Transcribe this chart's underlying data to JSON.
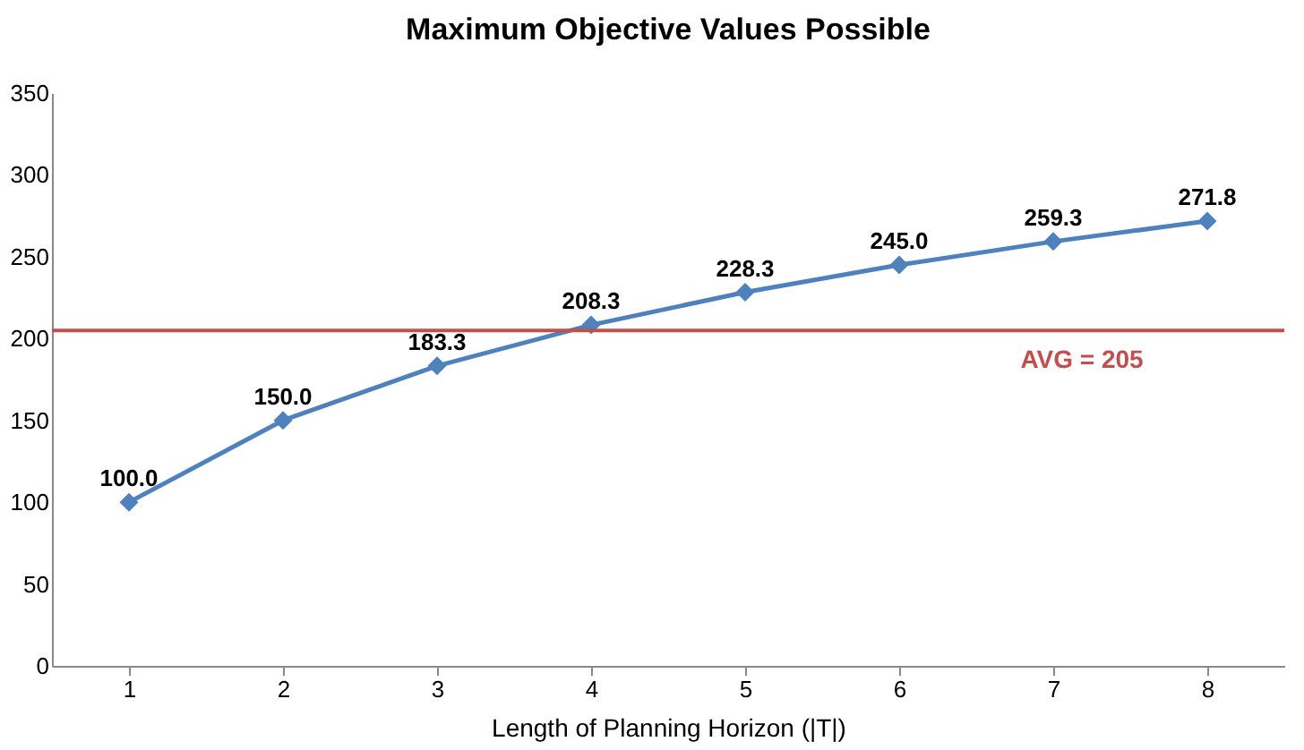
{
  "chart_data": {
    "type": "line",
    "title": "Maximum Objective Values Possible",
    "xlabel": "Length of Planning Horizon (|T|)",
    "categories": [
      "1",
      "2",
      "3",
      "4",
      "5",
      "6",
      "7",
      "8"
    ],
    "series": [
      {
        "color": "#4f81bd",
        "values": [
          100.0,
          150.0,
          183.3,
          208.3,
          228.3,
          245.0,
          259.3,
          271.8
        ],
        "value_labels": [
          "100.0",
          "150.0",
          "183.3",
          "208.3",
          "228.3",
          "245.0",
          "259.3",
          "271.8"
        ]
      }
    ],
    "marker": "diamond",
    "line_style": "solid",
    "grid": false,
    "ylim": [
      0,
      350
    ],
    "yticks": [
      0,
      50,
      100,
      150,
      200,
      250,
      300,
      350
    ],
    "ref_lines": [
      {
        "axis": "y",
        "value": 205,
        "label": "AVG = 205",
        "color": "#c0504d"
      }
    ]
  }
}
